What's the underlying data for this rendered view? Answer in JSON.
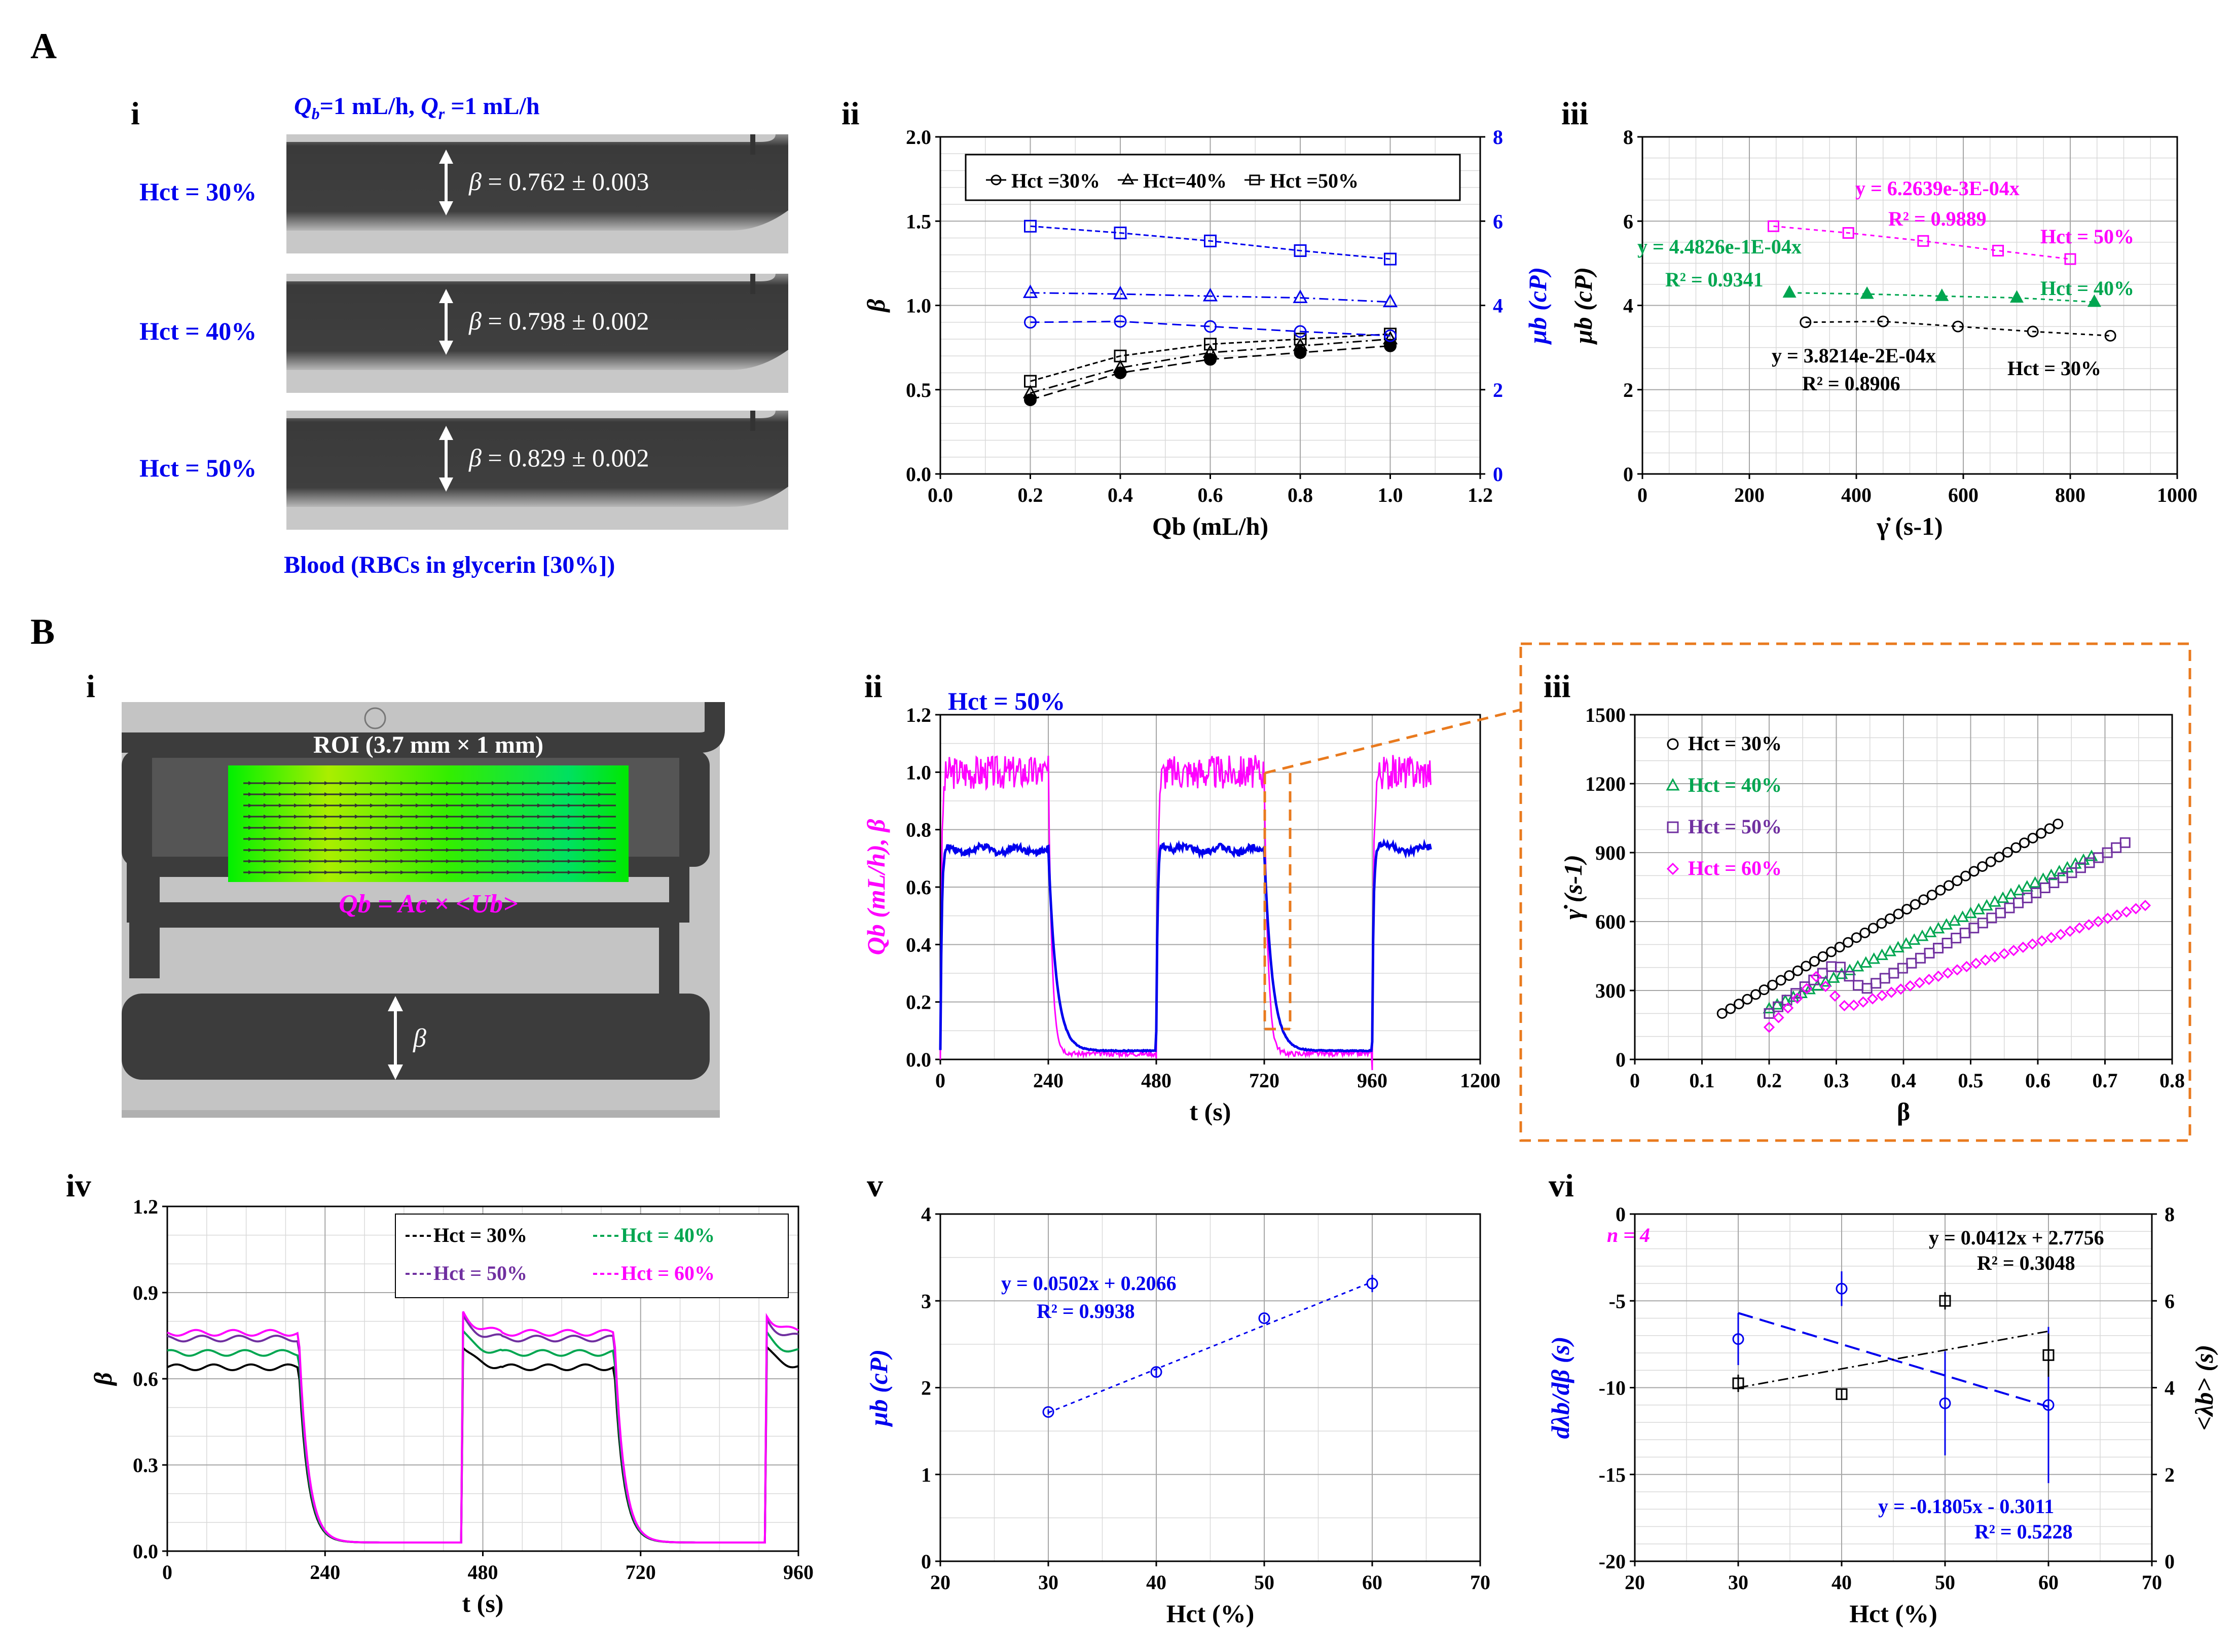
{
  "panels": {
    "A": "A",
    "B": "B",
    "Ai": "i",
    "Aii": "ii",
    "Aiii": "iii",
    "Bi": "i",
    "Bii": "ii",
    "Biii": "iii",
    "Biv": "iv",
    "Bv": "v",
    "Bvi": "vi"
  },
  "Ai": {
    "cond_Qb": "Q",
    "cond_sub_b": "b",
    "cond_mid": "=1 mL/h, ",
    "cond_Qr": "Q",
    "cond_sub_r": "r",
    "cond_end": " =1 mL/h",
    "rows": [
      {
        "label": "Hct = 30%",
        "beta": "= 0.762 ± 0.003"
      },
      {
        "label": "Hct = 40%",
        "beta": "= 0.798 ± 0.002"
      },
      {
        "label": "Hct = 50%",
        "beta": "= 0.829 ± 0.002"
      }
    ],
    "beta_sym": "β",
    "caption": "Blood (RBCs in glycerin [30%])"
  },
  "Bi": {
    "roi": "ROI (3.7 mm × 1 mm)",
    "flow_eq": "Qb = Ac × <Ub>",
    "beta_sym": "β"
  },
  "Bii_label": "Hct = 50%",
  "Bv_fit": {
    "eq": "y = 0.0502x + 0.2066",
    "r2": "R² = 0.9938"
  },
  "Bvi_fit": {
    "n": "n = 4",
    "eq1": "y = 0.0412x + 2.7756",
    "r1": "R² = 0.3048",
    "eq2": "y = -0.1805x - 0.3011",
    "r2": "R² = 0.5228"
  },
  "Aiii_fit": {
    "e50": "y = 6.2639e-3E-04x",
    "r50": "R² = 0.9889",
    "l50": "Hct = 50%",
    "e40": "y = 4.4826e-1E-04x",
    "r40": "R² = 0.9341",
    "l40": "Hct = 40%",
    "e30": "y = 3.8214e-2E-04x",
    "r30": "R² = 0.8906",
    "l30": "Hct = 30%"
  },
  "colors": {
    "black": "#000000",
    "blue": "#0000ee",
    "green": "#00a650",
    "magenta": "#ff00ff",
    "purple": "#7030a0",
    "orange": "#e97a1e"
  },
  "chart_data": [
    {
      "id": "Aii",
      "type": "line",
      "title": "",
      "xlabel": "Qb (mL/h)",
      "ylabel": "β",
      "y2label": "μb (cP)",
      "xlim": [
        0,
        1.2
      ],
      "ylim": [
        0,
        2
      ],
      "y2lim": [
        0,
        8
      ],
      "xticks": [
        "0.0",
        "0.2",
        "0.4",
        "0.6",
        "0.8",
        "1.0",
        "1.2"
      ],
      "yticks": [
        "0.0",
        "0.5",
        "1.0",
        "1.5",
        "2.0"
      ],
      "y2ticks": [
        "0",
        "2",
        "4",
        "6",
        "8"
      ],
      "legend": [
        "Hct =30%",
        "Hct=40%",
        "Hct =50%"
      ],
      "x": [
        0.2,
        0.4,
        0.6,
        0.8,
        1.0
      ],
      "series": [
        {
          "name": "β Hct=30%",
          "marker": "circle",
          "axis": "left",
          "values": [
            0.44,
            0.6,
            0.68,
            0.72,
            0.76
          ]
        },
        {
          "name": "β Hct=40%",
          "marker": "triangle",
          "axis": "left",
          "values": [
            0.48,
            0.63,
            0.72,
            0.76,
            0.8
          ]
        },
        {
          "name": "β Hct=50%",
          "marker": "square",
          "axis": "left",
          "values": [
            0.55,
            0.7,
            0.77,
            0.8,
            0.83
          ]
        },
        {
          "name": "μb Hct=30%",
          "marker": "circle",
          "axis": "right",
          "values": [
            3.6,
            3.62,
            3.5,
            3.38,
            3.28
          ]
        },
        {
          "name": "μb Hct=40%",
          "marker": "triangle",
          "axis": "right",
          "values": [
            4.3,
            4.27,
            4.22,
            4.18,
            4.08
          ]
        },
        {
          "name": "μb Hct=50%",
          "marker": "square",
          "axis": "right",
          "values": [
            5.88,
            5.72,
            5.53,
            5.3,
            5.1
          ]
        }
      ]
    },
    {
      "id": "Aiii",
      "type": "scatter",
      "xlabel": "γ̇ (s-1)",
      "ylabel": "μb (cP)",
      "xlim": [
        0,
        1000
      ],
      "ylim": [
        0,
        8
      ],
      "xticks": [
        "0",
        "200",
        "400",
        "600",
        "800",
        "1000"
      ],
      "yticks": [
        "0",
        "2",
        "4",
        "6",
        "8"
      ],
      "series": [
        {
          "name": "Hct = 30%",
          "marker": "circle",
          "x": [
            305,
            450,
            590,
            730,
            875
          ],
          "y": [
            3.6,
            3.62,
            3.5,
            3.38,
            3.28
          ]
        },
        {
          "name": "Hct = 40%",
          "marker": "triangle",
          "x": [
            275,
            420,
            560,
            700,
            845
          ],
          "y": [
            4.3,
            4.27,
            4.22,
            4.18,
            4.08
          ]
        },
        {
          "name": "Hct = 50%",
          "marker": "square",
          "x": [
            245,
            385,
            525,
            665,
            800
          ],
          "y": [
            5.88,
            5.72,
            5.53,
            5.3,
            5.1
          ]
        }
      ]
    },
    {
      "id": "Bii",
      "type": "line",
      "xlabel": "t (s)",
      "ylabel": "Qb (mL/h), β",
      "xlim": [
        0,
        1200
      ],
      "ylim": [
        0,
        1.2
      ],
      "xticks": [
        "0",
        "240",
        "480",
        "720",
        "960",
        "1200"
      ],
      "yticks": [
        "0.0",
        "0.2",
        "0.4",
        "0.6",
        "0.8",
        "1.0",
        "1.2"
      ],
      "series": [
        {
          "name": "Qb",
          "on": [
            [
              0,
              240
            ],
            [
              480,
              720
            ],
            [
              960,
              1090
            ]
          ],
          "high": 1.0,
          "low": 0.02
        },
        {
          "name": "β",
          "on": [
            [
              0,
              240
            ],
            [
              480,
              720
            ],
            [
              960,
              1090
            ]
          ],
          "high": 0.73,
          "low": 0.03
        }
      ]
    },
    {
      "id": "Biii",
      "type": "scatter",
      "xlabel": "β",
      "ylabel": "γ̇ (s-1)",
      "xlim": [
        0,
        0.8
      ],
      "ylim": [
        0,
        1500
      ],
      "xticks": [
        "0",
        "0.1",
        "0.2",
        "0.3",
        "0.4",
        "0.5",
        "0.6",
        "0.7",
        "0.8"
      ],
      "yticks": [
        "0",
        "300",
        "600",
        "900",
        "1200",
        "1500"
      ],
      "legend": [
        "Hct = 30%",
        "Hct = 40%",
        "Hct = 50%",
        "Hct = 60%"
      ]
    },
    {
      "id": "Biv",
      "type": "line",
      "xlabel": "t (s)",
      "ylabel": "β",
      "xlim": [
        0,
        960
      ],
      "ylim": [
        0,
        1.2
      ],
      "xticks": [
        "0",
        "240",
        "480",
        "720",
        "960"
      ],
      "yticks": [
        "0.0",
        "0.3",
        "0.6",
        "0.9",
        "1.2"
      ],
      "legend": [
        "Hct = 30%",
        "Hct = 40%",
        "Hct = 50%",
        "Hct = 60%"
      ],
      "series": [
        {
          "name": "Hct = 30%",
          "high": 0.64,
          "low": 0.03
        },
        {
          "name": "Hct = 40%",
          "high": 0.69,
          "low": 0.03
        },
        {
          "name": "Hct = 50%",
          "high": 0.74,
          "low": 0.03
        },
        {
          "name": "Hct = 60%",
          "high": 0.76,
          "low": 0.03
        }
      ]
    },
    {
      "id": "Bv",
      "type": "scatter",
      "xlabel": "Hct (%)",
      "ylabel": "μb (cP)",
      "xlim": [
        20,
        70
      ],
      "ylim": [
        0,
        4
      ],
      "xticks": [
        "20",
        "30",
        "40",
        "50",
        "60",
        "70"
      ],
      "yticks": [
        "0",
        "1",
        "2",
        "3",
        "4"
      ],
      "x": [
        30,
        40,
        50,
        60
      ],
      "values": [
        1.72,
        2.18,
        2.8,
        3.2
      ],
      "err": [
        0.03,
        0.05,
        0.04,
        0.1
      ]
    },
    {
      "id": "Bvi",
      "type": "scatter",
      "xlabel": "Hct (%)",
      "ylabel": "dλb/dβ (s)",
      "y2label": "<λb> (s)",
      "xlim": [
        20,
        70
      ],
      "ylim": [
        -20,
        0
      ],
      "y2lim": [
        0,
        8
      ],
      "xticks": [
        "20",
        "30",
        "40",
        "50",
        "60",
        "70"
      ],
      "yticks": [
        "-20",
        "-15",
        "-10",
        "-5",
        "0"
      ],
      "y2ticks": [
        "0",
        "2",
        "4",
        "6",
        "8"
      ],
      "x": [
        30,
        40,
        50,
        60
      ],
      "series": [
        {
          "name": "dλb/dβ",
          "axis": "left",
          "values": [
            -7.2,
            -4.3,
            -10.9,
            -11.0
          ],
          "err": [
            1.5,
            1.0,
            3.0,
            4.5
          ]
        },
        {
          "name": "<λb>",
          "axis": "right",
          "values": [
            4.1,
            3.85,
            6.0,
            4.75
          ],
          "err": [
            0.2,
            0.1,
            0.2,
            0.5
          ]
        }
      ]
    }
  ]
}
